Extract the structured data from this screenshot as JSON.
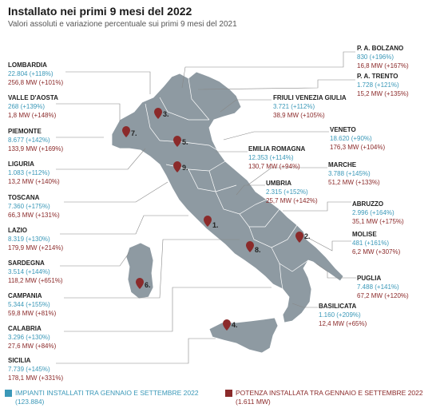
{
  "title": "Installato nei primi 9 mesi del 2022",
  "subtitle": "Valori assoluti e variazione percentuale sui primi 9 mesi del 2021",
  "colors": {
    "installed": "#3a98b8",
    "power": "#8b2a2a",
    "map_fill": "#8e9aa2",
    "pin": "#8b2a2a"
  },
  "regions": {
    "lombardia": {
      "name": "LOMBARDIA",
      "installed": "22.804 (+118%)",
      "power": "256,8 MW (+101%)"
    },
    "valle_aosta": {
      "name": "VALLE D'AOSTA",
      "installed": "268 (+139%)",
      "power": "1,8 MW (+148%)"
    },
    "piemonte": {
      "name": "PIEMONTE",
      "installed": "8.677 (+142%)",
      "power": "133,9 MW (+169%)"
    },
    "liguria": {
      "name": "LIGURIA",
      "installed": "1.083 (+112%)",
      "power": "13,2 MW (+140%)"
    },
    "toscana": {
      "name": "TOSCANA",
      "installed": "7.360 (+175%)",
      "power": "66,3 MW (+131%)"
    },
    "lazio": {
      "name": "LAZIO",
      "installed": "8.319 (+130%)",
      "power": "179,9 MW (+214%)"
    },
    "sardegna": {
      "name": "SARDEGNA",
      "installed": "3.514 (+144%)",
      "power": "118,2 MW (+651%)"
    },
    "campania": {
      "name": "CAMPANIA",
      "installed": "5.344 (+155%)",
      "power": "59,8 MW (+81%)"
    },
    "calabria": {
      "name": "CALABRIA",
      "installed": "3.296 (+130%)",
      "power": "27,6 MW (+84%)"
    },
    "sicilia": {
      "name": "SICILIA",
      "installed": "7.739 (+145%)",
      "power": "178,1 MW (+331%)"
    },
    "bolzano": {
      "name": "P. A. BOLZANO",
      "installed": "830 (+196%)",
      "power": "16,8 MW (+167%)"
    },
    "trento": {
      "name": "P. A. TRENTO",
      "installed": "1.728 (+121%)",
      "power": "15,2 MW (+135%)"
    },
    "friuli": {
      "name": "FRIULI VENEZIA GIULIA",
      "installed": "3.721 (+112%)",
      "power": "38,9 MW (+105%)"
    },
    "veneto": {
      "name": "VENETO",
      "installed": "18.620 (+90%)",
      "power": "176,3 MW (+104%)"
    },
    "emilia": {
      "name": "EMILIA ROMAGNA",
      "installed": "12.353 (+114%)",
      "power": "130,7 MW (+94%)"
    },
    "marche": {
      "name": "MARCHE",
      "installed": "3.788 (+145%)",
      "power": "51,2 MW (+133%)"
    },
    "umbria": {
      "name": "UMBRIA",
      "installed": "2.315 (+152%)",
      "power": "25,7 MW (+142%)"
    },
    "abruzzo": {
      "name": "ABRUZZO",
      "installed": "2.996 (+164%)",
      "power": "35,1 MW (+175%)"
    },
    "molise": {
      "name": "MOLISE",
      "installed": "481 (+161%)",
      "power": "6,2 MW (+307%)"
    },
    "puglia": {
      "name": "PUGLIA",
      "installed": "7.488 (+141%)",
      "power": "67,2 MW (+120%)"
    },
    "basilicata": {
      "name": "BASILICATA",
      "installed": "1.160 (+209%)",
      "power": "12,4 MW (+65%)"
    }
  },
  "markers": [
    "1.",
    "2.",
    "3.",
    "4.",
    "5.",
    "6.",
    "7.",
    "8.",
    "9."
  ],
  "legend": {
    "installed": "IMPIANTI INSTALLATI TRA GENNAIO E SETTEMBRE 2022 (123.884)",
    "power": "POTENZA INSTALLATA TRA GENNAIO E SETTEMBRE 2022 (1.611 MW)"
  }
}
